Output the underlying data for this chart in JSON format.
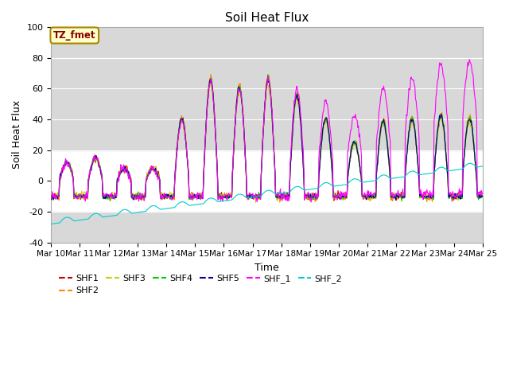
{
  "title": "Soil Heat Flux",
  "xlabel": "Time",
  "ylabel": "Soil Heat Flux",
  "ylim": [
    -40,
    100
  ],
  "xlim": [
    0,
    15
  ],
  "yticks": [
    -40,
    -20,
    0,
    20,
    40,
    60,
    80,
    100
  ],
  "xtick_labels": [
    "Mar 10",
    "Mar 11",
    "Mar 12",
    "Mar 13",
    "Mar 14",
    "Mar 15",
    "Mar 16",
    "Mar 17",
    "Mar 18",
    "Mar 19",
    "Mar 20",
    "Mar 21",
    "Mar 22",
    "Mar 23",
    "Mar 24",
    "Mar 25"
  ],
  "series_colors": {
    "SHF1": "#cc0000",
    "SHF2": "#ff8800",
    "SHF3": "#cccc00",
    "SHF4": "#00cc00",
    "SHF5": "#000099",
    "SHF_1": "#ff00ff",
    "SHF_2": "#00cccc"
  },
  "shade_band1_lo": -40,
  "shade_band1_hi": -20,
  "shade_band2_lo": 20,
  "shade_band2_hi": 100,
  "shade_color": "#d8d8d8",
  "background_color": "#ffffff",
  "plot_bg_color": "#ffffff",
  "tz_label": "TZ_fmet",
  "tz_bg": "#ffffcc",
  "tz_border": "#aa8800",
  "tz_text_color": "#880000",
  "day_amplitudes": [
    12,
    15,
    8,
    8,
    40,
    65,
    60,
    65,
    55,
    40,
    25,
    38,
    40,
    42,
    40
  ],
  "night_val": -10,
  "lw": 0.8
}
